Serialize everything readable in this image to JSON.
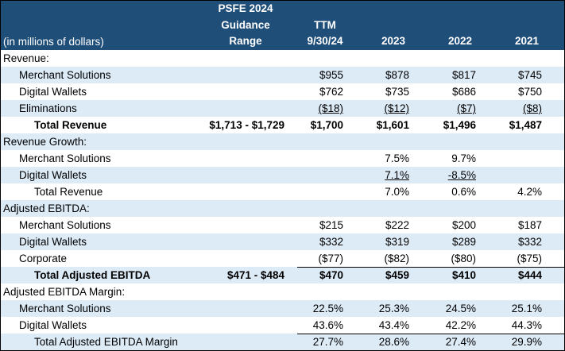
{
  "header": {
    "units_label": "(in millions of dollars)",
    "columns": [
      {
        "key": "guidance",
        "lines": [
          "PSFE 2024",
          "Guidance",
          "Range"
        ]
      },
      {
        "key": "ttm",
        "lines": [
          "",
          "TTM",
          "9/30/24"
        ]
      },
      {
        "key": "y2023",
        "lines": [
          "",
          "",
          "2023"
        ]
      },
      {
        "key": "y2022",
        "lines": [
          "",
          "",
          "2022"
        ]
      },
      {
        "key": "y2021",
        "lines": [
          "",
          "",
          "2021"
        ]
      }
    ]
  },
  "rows": [
    {
      "label": "Revenue:",
      "level": 0,
      "bold": false,
      "shade": false,
      "values": [
        "",
        "",
        "",
        "",
        ""
      ]
    },
    {
      "label": "Merchant Solutions",
      "level": 1,
      "bold": false,
      "shade": true,
      "values": [
        "",
        "$955",
        "$878",
        "$817",
        "$745"
      ]
    },
    {
      "label": "Digital Wallets",
      "level": 1,
      "bold": false,
      "shade": false,
      "values": [
        "",
        "$762",
        "$735",
        "$686",
        "$750"
      ]
    },
    {
      "label": "Eliminations",
      "level": 1,
      "bold": false,
      "shade": true,
      "underline": true,
      "values": [
        "",
        "($18)",
        "($12)",
        "($7)",
        "($8)"
      ]
    },
    {
      "label": "Total Revenue",
      "level": 2,
      "bold": true,
      "shade": false,
      "values": [
        "$1,713 - $1,729",
        "$1,700",
        "$1,601",
        "$1,496",
        "$1,487"
      ]
    },
    {
      "label": "Revenue Growth:",
      "level": 0,
      "bold": false,
      "shade": true,
      "values": [
        "",
        "",
        "",
        "",
        ""
      ]
    },
    {
      "label": "Merchant Solutions",
      "level": 1,
      "bold": false,
      "shade": false,
      "values": [
        "",
        "",
        "7.5%",
        "9.7%",
        ""
      ]
    },
    {
      "label": "Digital Wallets",
      "level": 1,
      "bold": false,
      "shade": true,
      "underline": true,
      "values": [
        "",
        "",
        "7.1%",
        "-8.5%",
        ""
      ]
    },
    {
      "label": "Total Revenue",
      "level": 2,
      "bold": false,
      "shade": false,
      "values": [
        "",
        "",
        "7.0%",
        "0.6%",
        "4.2%"
      ]
    },
    {
      "label": "Adjusted EBITDA:",
      "level": 0,
      "bold": false,
      "shade": true,
      "values": [
        "",
        "",
        "",
        "",
        ""
      ]
    },
    {
      "label": "Merchant Solutions",
      "level": 1,
      "bold": false,
      "shade": false,
      "values": [
        "",
        "$215",
        "$222",
        "$200",
        "$187"
      ]
    },
    {
      "label": "Digital Wallets",
      "level": 1,
      "bold": false,
      "shade": true,
      "values": [
        "",
        "$332",
        "$319",
        "$289",
        "$332"
      ]
    },
    {
      "label": "Corporate",
      "level": 1,
      "bold": false,
      "shade": false,
      "values": [
        "",
        "($77)",
        "($82)",
        "($80)",
        "($75)"
      ]
    },
    {
      "label": "Total Adjusted EBITDA",
      "level": 2,
      "bold": true,
      "shade": true,
      "topline": true,
      "values": [
        "$471 - $484",
        "$470",
        "$459",
        "$410",
        "$444"
      ]
    },
    {
      "label": "Adjusted EBITDA Margin:",
      "level": 0,
      "bold": false,
      "shade": false,
      "values": [
        "",
        "",
        "",
        "",
        ""
      ]
    },
    {
      "label": "Merchant Solutions",
      "level": 1,
      "bold": false,
      "shade": true,
      "values": [
        "",
        "22.5%",
        "25.3%",
        "24.5%",
        "25.1%"
      ]
    },
    {
      "label": "Digital Wallets",
      "level": 1,
      "bold": false,
      "shade": false,
      "values": [
        "",
        "43.6%",
        "43.4%",
        "42.2%",
        "44.3%"
      ]
    },
    {
      "label": "Total Adjusted EBITDA Margin",
      "level": 2,
      "bold": false,
      "shade": true,
      "topline": true,
      "values": [
        "",
        "27.7%",
        "28.6%",
        "27.4%",
        "29.9%"
      ]
    }
  ],
  "colors": {
    "header_bg": "#1f4e79",
    "header_text": "#ffffff",
    "band_shade": "#ddebf7"
  }
}
